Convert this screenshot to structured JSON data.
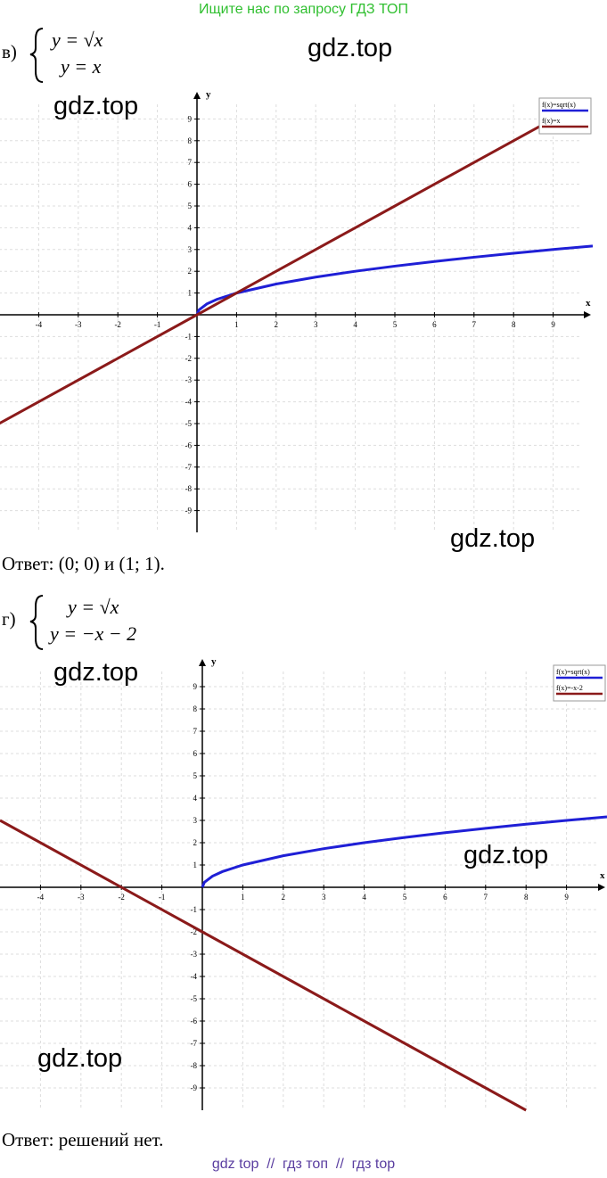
{
  "header": "Ищите нас по запросу ГДЗ ТОП",
  "watermarks": [
    "gdz.top",
    "gdz.top",
    "gdz.top",
    "gdz.top",
    "gdz.top",
    "gdz.top"
  ],
  "sections": [
    {
      "label": "в)",
      "equations": [
        "y = √x",
        "y = x"
      ],
      "answer": "Ответ: (0; 0) и (1; 1)."
    },
    {
      "label": "г)",
      "equations": [
        "y = √x",
        "y = −x − 2"
      ],
      "answer": "Ответ: решений нет."
    }
  ],
  "chart_data": [
    {
      "type": "line",
      "x_label": "x",
      "y_label": "y",
      "x": [
        -5,
        0,
        0.05,
        0.25,
        0.5,
        1,
        2,
        3,
        4,
        5,
        6,
        7,
        8,
        8.8,
        9,
        10
      ],
      "series": [
        {
          "name": "f(x)=sqrt(x)",
          "color": "#1f1fd6",
          "values": [
            null,
            0,
            0.224,
            0.5,
            0.707,
            1,
            1.414,
            1.732,
            2,
            2.236,
            2.449,
            2.646,
            2.828,
            2.966,
            3,
            3.162
          ]
        },
        {
          "name": "f(x)=x",
          "color": "#8b1a1a",
          "values": [
            -5,
            0,
            0.05,
            0.25,
            0.5,
            1,
            2,
            3,
            4,
            5,
            6,
            7,
            8,
            8.8,
            null,
            null
          ]
        }
      ],
      "xlim": [
        -5,
        10
      ],
      "ylim": [
        -10,
        10
      ],
      "xticks": [
        -4,
        -3,
        -2,
        -1,
        1,
        2,
        3,
        4,
        5,
        6,
        7,
        8,
        9
      ],
      "yticks": [
        -9,
        -8,
        -7,
        -6,
        -5,
        -4,
        -3,
        -2,
        -1,
        1,
        2,
        3,
        4,
        5,
        6,
        7,
        8,
        9
      ],
      "grid": true
    },
    {
      "type": "line",
      "x_label": "x",
      "y_label": "y",
      "x": [
        -5,
        0,
        0.05,
        0.25,
        0.5,
        1,
        2,
        3,
        4,
        5,
        6,
        7,
        8,
        9,
        10
      ],
      "series": [
        {
          "name": "f(x)=sqrt(x)",
          "color": "#1f1fd6",
          "values": [
            null,
            0,
            0.224,
            0.5,
            0.707,
            1,
            1.414,
            1.732,
            2,
            2.236,
            2.449,
            2.646,
            2.828,
            3,
            3.162
          ]
        },
        {
          "name": "f(x)=-x-2",
          "color": "#8b1a1a",
          "values": [
            3,
            -2,
            -2.05,
            -2.25,
            -2.5,
            -3,
            -4,
            -5,
            -6,
            -7,
            -8,
            -9,
            -10,
            null,
            null
          ]
        }
      ],
      "xlim": [
        -5,
        10
      ],
      "ylim": [
        -10,
        10
      ],
      "xticks": [
        -4,
        -3,
        -2,
        -1,
        1,
        2,
        3,
        4,
        5,
        6,
        7,
        8,
        9
      ],
      "yticks": [
        -9,
        -8,
        -7,
        -6,
        -5,
        -4,
        -3,
        -2,
        -1,
        1,
        2,
        3,
        4,
        5,
        6,
        7,
        8,
        9
      ],
      "grid": true
    }
  ],
  "footer": "gdz top  //  гдз топ  //  гдз top"
}
